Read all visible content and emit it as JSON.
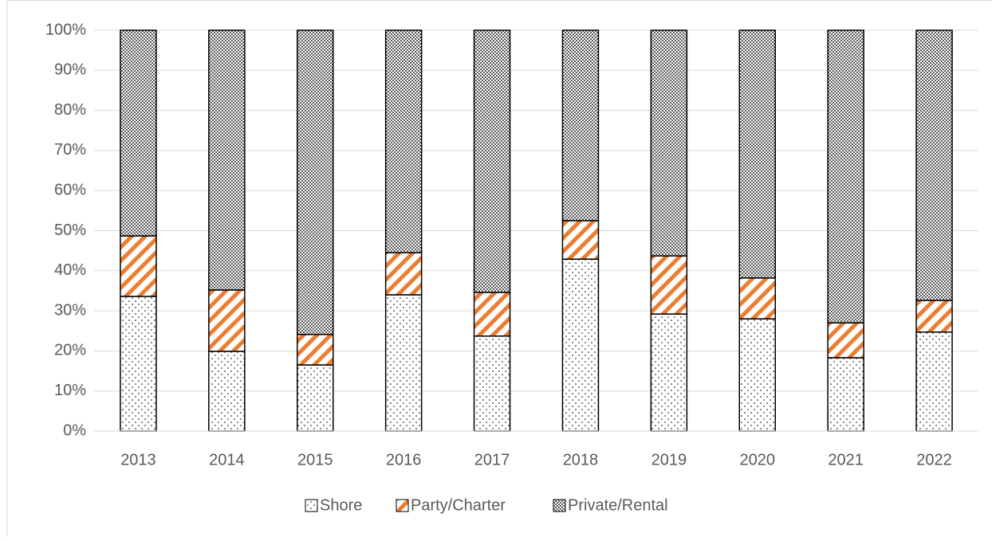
{
  "chart_data": {
    "type": "bar",
    "stacked": true,
    "categories": [
      "2013",
      "2014",
      "2015",
      "2016",
      "2017",
      "2018",
      "2019",
      "2020",
      "2021",
      "2022"
    ],
    "series": [
      {
        "name": "Shore",
        "color": "#000000",
        "pattern": "dots",
        "values": [
          33.6,
          19.9,
          16.5,
          34.0,
          23.7,
          42.9,
          29.2,
          28.0,
          18.3,
          24.7
        ]
      },
      {
        "name": "Party/Charter",
        "color": "#ed7d31",
        "pattern": "stripes",
        "values": [
          15.1,
          15.3,
          7.6,
          10.5,
          10.9,
          9.6,
          14.5,
          10.2,
          8.7,
          7.9
        ]
      },
      {
        "name": "Private/Rental",
        "color": "#595959",
        "pattern": "crosshatch",
        "values": [
          51.3,
          64.8,
          75.9,
          55.5,
          65.4,
          47.5,
          56.3,
          61.8,
          73.0,
          67.4
        ]
      }
    ],
    "ylim": [
      0,
      100
    ],
    "yticks": [
      {
        "value": 0,
        "label": "0%"
      },
      {
        "value": 10,
        "label": "10%"
      },
      {
        "value": 20,
        "label": "20%"
      },
      {
        "value": 30,
        "label": "30%"
      },
      {
        "value": 40,
        "label": "40%"
      },
      {
        "value": 50,
        "label": "50%"
      },
      {
        "value": 60,
        "label": "60%"
      },
      {
        "value": 70,
        "label": "70%"
      },
      {
        "value": 80,
        "label": "80%"
      },
      {
        "value": 90,
        "label": "90%"
      },
      {
        "value": 100,
        "label": "100%"
      }
    ],
    "grid": true,
    "legend": "bottom"
  }
}
